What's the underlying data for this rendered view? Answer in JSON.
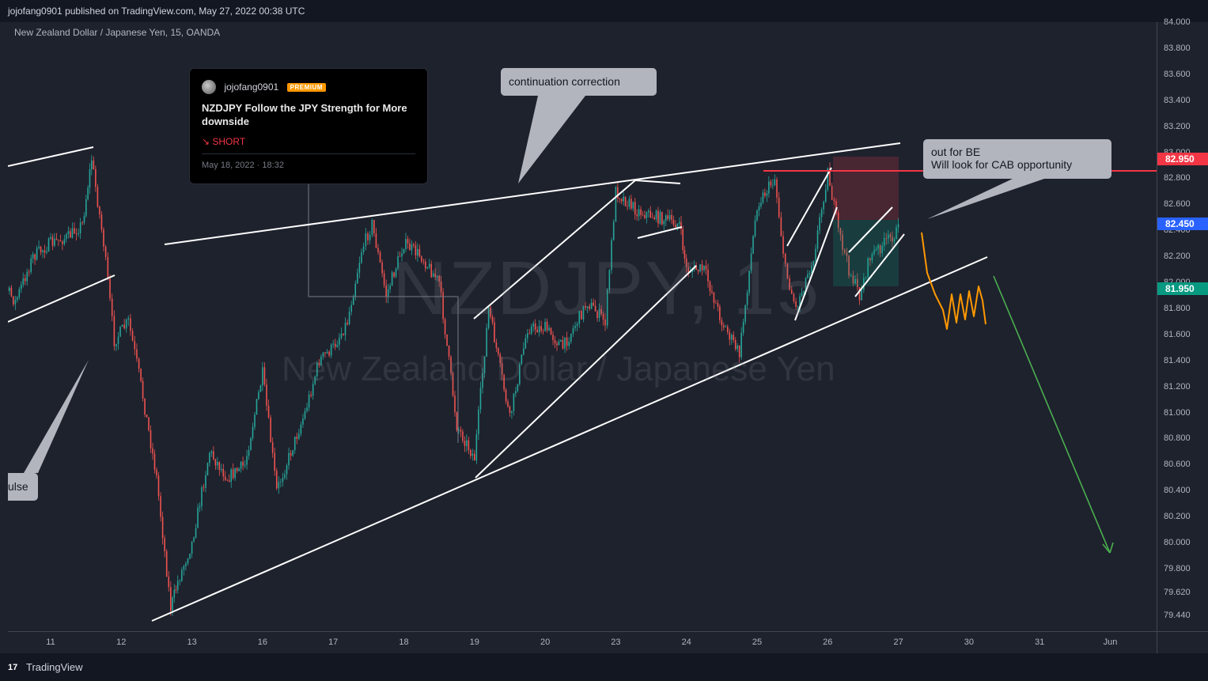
{
  "header": {
    "published_line": "jojofang0901 published on TradingView.com, May 27, 2022 00:38 UTC"
  },
  "chart_header": {
    "symbol_line": "New Zealand Dollar / Japanese Yen, 15, OANDA",
    "watermark_symbol": "NZDJPY, 15",
    "watermark_description": "New Zealand Dollar / Japanese Yen"
  },
  "idea_card": {
    "author": "jojofang0901",
    "badge": "PREMIUM",
    "title": "NZDJPY Follow the JPY Strength for More downside",
    "direction": "↘ SHORT",
    "date": "May 18, 2022 · 18:32"
  },
  "callouts": {
    "continuation": "continuation correction",
    "be": "out for BE\nWill look for CAB opportunity",
    "impulse": "ulse"
  },
  "footer": {
    "logo_icon": "17",
    "logo_text": "TradingView"
  },
  "colors": {
    "background": "#1e222d",
    "up_candle": "#26a69a",
    "down_candle": "#ef5350",
    "trend_line": "#ffffff",
    "resistance_line": "#f23645",
    "projection_arrow": "#4caf50",
    "projection_zigzag": "#ff9800"
  },
  "chart_data": {
    "type": "candlestick",
    "symbol": "NZDJPY",
    "timeframe": "15",
    "exchange": "OANDA",
    "ylim": [
      79.32,
      84.0
    ],
    "y_ticks": [
      79.44,
      79.62,
      79.8,
      80.0,
      80.2,
      80.4,
      80.6,
      80.8,
      81.0,
      81.2,
      81.4,
      81.6,
      81.8,
      82.0,
      82.2,
      82.4,
      82.6,
      82.8,
      83.0,
      83.2,
      83.4,
      83.6,
      83.8,
      84.0
    ],
    "y_tick_labels": [
      "79.440",
      "79.620",
      "79.800",
      "80.000",
      "80.200",
      "80.400",
      "80.600",
      "80.800",
      "81.000",
      "81.200",
      "81.400",
      "81.600",
      "81.800",
      "82.000",
      "82.200",
      "82.400",
      "82.600",
      "82.800",
      "83.000",
      "83.200",
      "83.400",
      "83.600",
      "83.800",
      "84.000"
    ],
    "x_labels": [
      "11",
      "12",
      "13",
      "16",
      "17",
      "18",
      "19",
      "20",
      "23",
      "24",
      "25",
      "26",
      "27",
      "30",
      "31",
      "Jun"
    ],
    "price_tags": [
      {
        "value": 82.95,
        "label": "82.950",
        "color": "#f23645"
      },
      {
        "value": 82.45,
        "label": "82.450",
        "color": "#2962ff"
      },
      {
        "value": 81.95,
        "label": "81.950",
        "color": "#089981"
      }
    ],
    "path": [
      {
        "day": 10.0,
        "price": 82.25
      },
      {
        "day": 10.25,
        "price": 82.05
      },
      {
        "day": 10.5,
        "price": 81.85
      },
      {
        "day": 10.75,
        "price": 82.2
      },
      {
        "day": 11.0,
        "price": 82.3
      },
      {
        "day": 11.25,
        "price": 82.35
      },
      {
        "day": 11.45,
        "price": 82.45
      },
      {
        "day": 11.58,
        "price": 82.95
      },
      {
        "day": 11.75,
        "price": 82.3
      },
      {
        "day": 11.9,
        "price": 81.55
      },
      {
        "day": 12.1,
        "price": 81.7
      },
      {
        "day": 12.25,
        "price": 81.3
      },
      {
        "day": 12.5,
        "price": 80.5
      },
      {
        "day": 12.7,
        "price": 79.5
      },
      {
        "day": 12.8,
        "price": 79.7
      },
      {
        "day": 13.0,
        "price": 80.0
      },
      {
        "day": 13.25,
        "price": 80.7
      },
      {
        "day": 13.5,
        "price": 80.5
      },
      {
        "day": 13.75,
        "price": 80.6
      },
      {
        "day": 16.0,
        "price": 81.3
      },
      {
        "day": 16.2,
        "price": 80.4
      },
      {
        "day": 16.4,
        "price": 80.7
      },
      {
        "day": 16.6,
        "price": 81.0
      },
      {
        "day": 16.8,
        "price": 81.4
      },
      {
        "day": 17.0,
        "price": 81.5
      },
      {
        "day": 17.2,
        "price": 81.7
      },
      {
        "day": 17.4,
        "price": 82.25
      },
      {
        "day": 17.55,
        "price": 82.45
      },
      {
        "day": 17.75,
        "price": 81.9
      },
      {
        "day": 18.0,
        "price": 82.3
      },
      {
        "day": 18.25,
        "price": 82.2
      },
      {
        "day": 18.5,
        "price": 82.0
      },
      {
        "day": 18.75,
        "price": 80.9
      },
      {
        "day": 19.0,
        "price": 80.65
      },
      {
        "day": 19.2,
        "price": 81.8
      },
      {
        "day": 19.5,
        "price": 80.95
      },
      {
        "day": 19.75,
        "price": 81.65
      },
      {
        "day": 20.0,
        "price": 81.65
      },
      {
        "day": 20.25,
        "price": 81.5
      },
      {
        "day": 20.6,
        "price": 81.85
      },
      {
        "day": 20.85,
        "price": 81.7
      },
      {
        "day": 23.0,
        "price": 82.7
      },
      {
        "day": 23.3,
        "price": 82.55
      },
      {
        "day": 23.6,
        "price": 82.5
      },
      {
        "day": 23.9,
        "price": 82.45
      },
      {
        "day": 24.0,
        "price": 82.1
      },
      {
        "day": 24.25,
        "price": 82.1
      },
      {
        "day": 24.5,
        "price": 81.7
      },
      {
        "day": 24.75,
        "price": 81.45
      },
      {
        "day": 25.0,
        "price": 82.6
      },
      {
        "day": 25.25,
        "price": 82.8
      },
      {
        "day": 25.4,
        "price": 82.1
      },
      {
        "day": 25.55,
        "price": 81.8
      },
      {
        "day": 25.8,
        "price": 82.2
      },
      {
        "day": 26.0,
        "price": 82.85
      },
      {
        "day": 26.15,
        "price": 82.4
      },
      {
        "day": 26.3,
        "price": 82.1
      },
      {
        "day": 26.45,
        "price": 81.9
      },
      {
        "day": 26.6,
        "price": 82.2
      },
      {
        "day": 26.8,
        "price": 82.3
      },
      {
        "day": 27.0,
        "price": 82.4
      }
    ]
  }
}
